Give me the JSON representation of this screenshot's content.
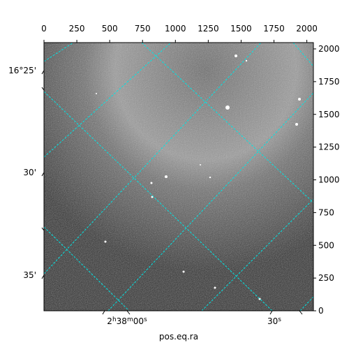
{
  "chart_data": {
    "type": "image",
    "x_label": "pos.eq.ra",
    "xlim": [
      0,
      2050
    ],
    "xticks": [
      0,
      250,
      500,
      750,
      1000,
      1250,
      1500,
      1750,
      2000
    ],
    "ylim": [
      0,
      2048
    ],
    "yticks": [
      0,
      250,
      500,
      750,
      1000,
      1250,
      1500,
      1750,
      2000
    ],
    "dec_tick_labels": [
      "16°25'",
      "30'",
      "35'"
    ],
    "ra_tick_labels": [
      [
        "2",
        "h",
        "38",
        "m",
        "00",
        "s"
      ],
      [
        "30",
        "s"
      ]
    ],
    "grid_color": "#00e5e5"
  }
}
